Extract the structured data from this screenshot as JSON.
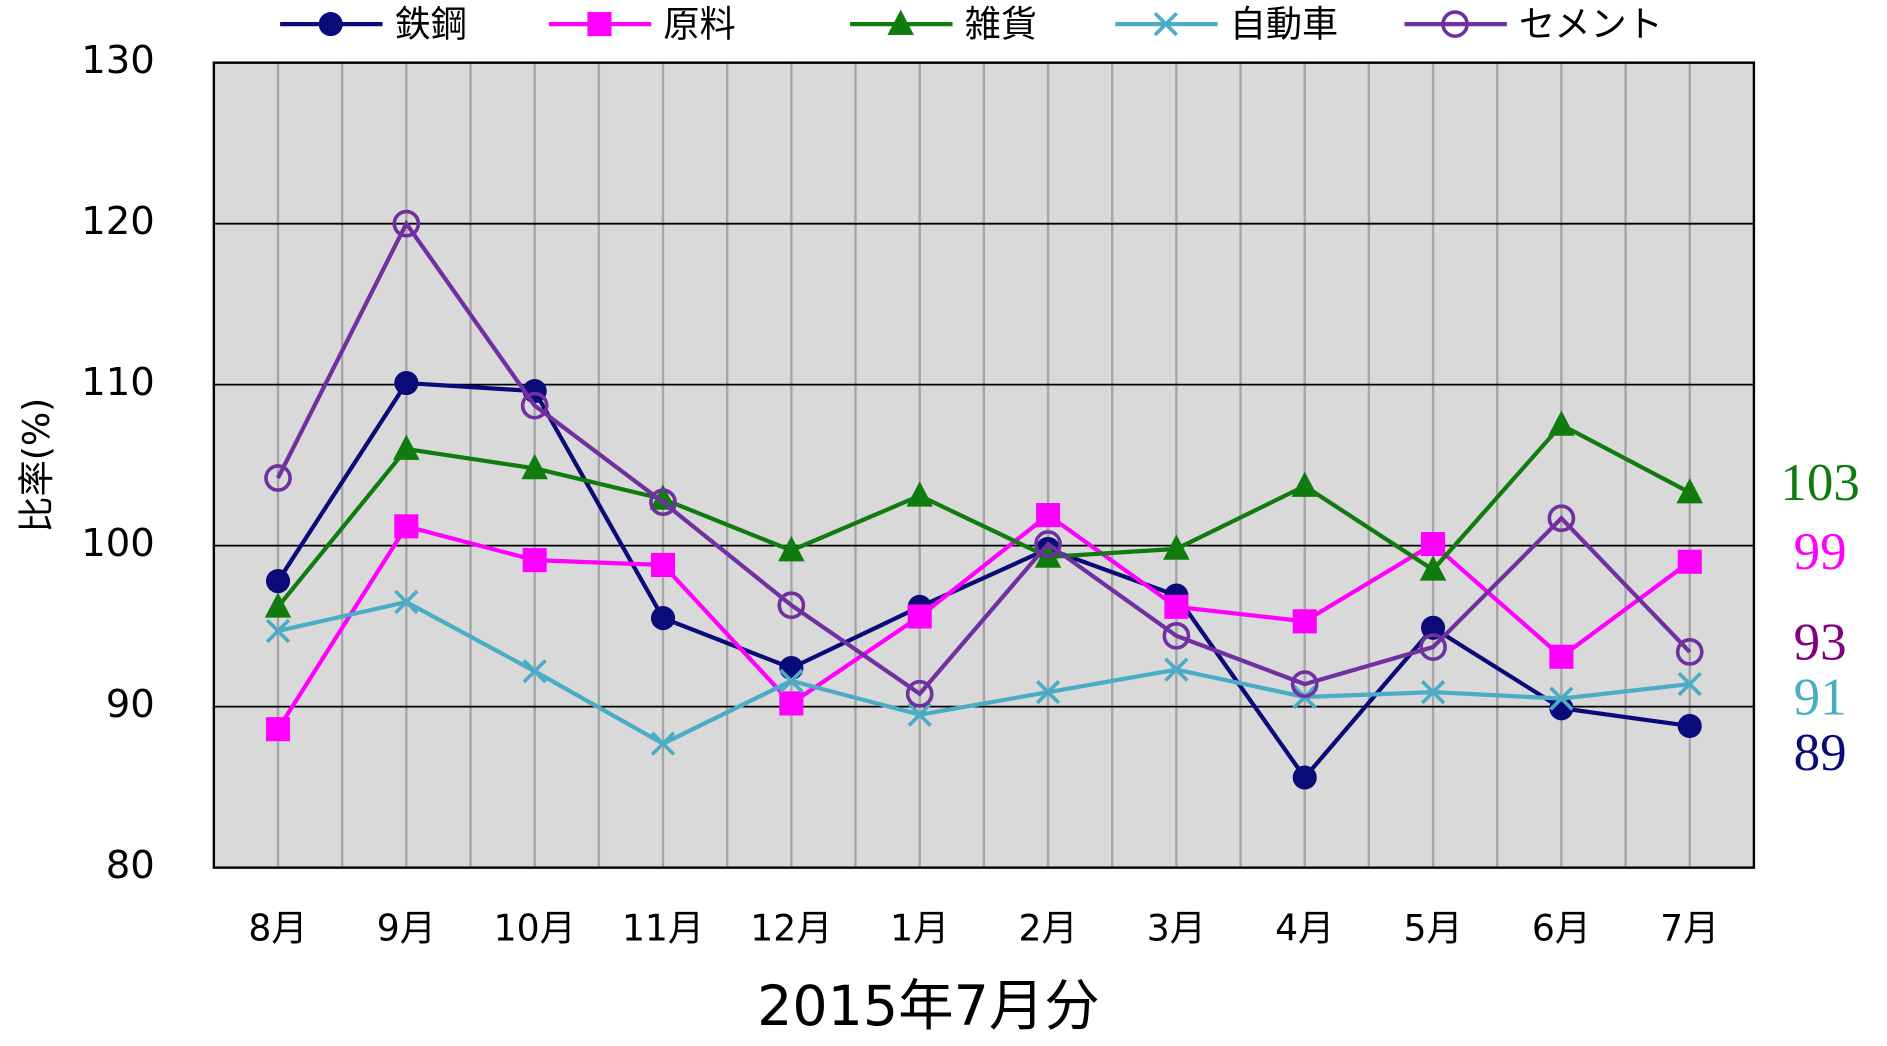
{
  "chart_data": {
    "type": "line",
    "x_title": "2015年7月分",
    "y_title": "比率(%)",
    "categories": [
      "8月",
      "9月",
      "10月",
      "11月",
      "12月",
      "1月",
      "2月",
      "3月",
      "4月",
      "5月",
      "6月",
      "7月"
    ],
    "ylim": [
      80,
      130
    ],
    "yticks": [
      80,
      90,
      100,
      110,
      120,
      130
    ],
    "grid": true,
    "legend": "top",
    "series": [
      {
        "name": "鉄鋼",
        "color": "#0a0a78",
        "marker": "circle",
        "end_label": "89",
        "end_label_color": "#0a0a78",
        "values": [
          97.8,
          110.1,
          109.6,
          95.5,
          92.4,
          96.2,
          99.8,
          96.9,
          85.6,
          94.9,
          89.9,
          88.8
        ]
      },
      {
        "name": "原料",
        "color": "#ff00ff",
        "marker": "square",
        "end_label": "99",
        "end_label_color": "#ff00ff",
        "values": [
          88.6,
          101.2,
          99.1,
          98.8,
          90.2,
          95.6,
          101.9,
          96.2,
          95.3,
          100.1,
          93.1,
          99.0
        ]
      },
      {
        "name": "雑貨",
        "color": "#107c10",
        "marker": "triangle",
        "end_label": "103",
        "end_label_color": "#107c10",
        "values": [
          96.2,
          106.0,
          104.8,
          102.9,
          99.7,
          103.1,
          99.3,
          99.8,
          103.7,
          98.5,
          107.5,
          103.3
        ]
      },
      {
        "name": "自動車",
        "color": "#4bacc6",
        "marker": "x",
        "end_label": "91",
        "end_label_color": "#4bacc6",
        "values": [
          94.7,
          96.5,
          92.2,
          87.7,
          91.6,
          89.5,
          90.9,
          92.3,
          90.6,
          90.9,
          90.5,
          91.4
        ]
      },
      {
        "name": "セメント",
        "color": "#7030a0",
        "marker": "hollow-circle",
        "end_label": "93",
        "end_label_color": "#800080",
        "values": [
          104.2,
          120.0,
          108.7,
          102.7,
          96.3,
          90.8,
          100.1,
          94.4,
          91.4,
          93.7,
          101.7,
          93.4
        ]
      }
    ]
  }
}
